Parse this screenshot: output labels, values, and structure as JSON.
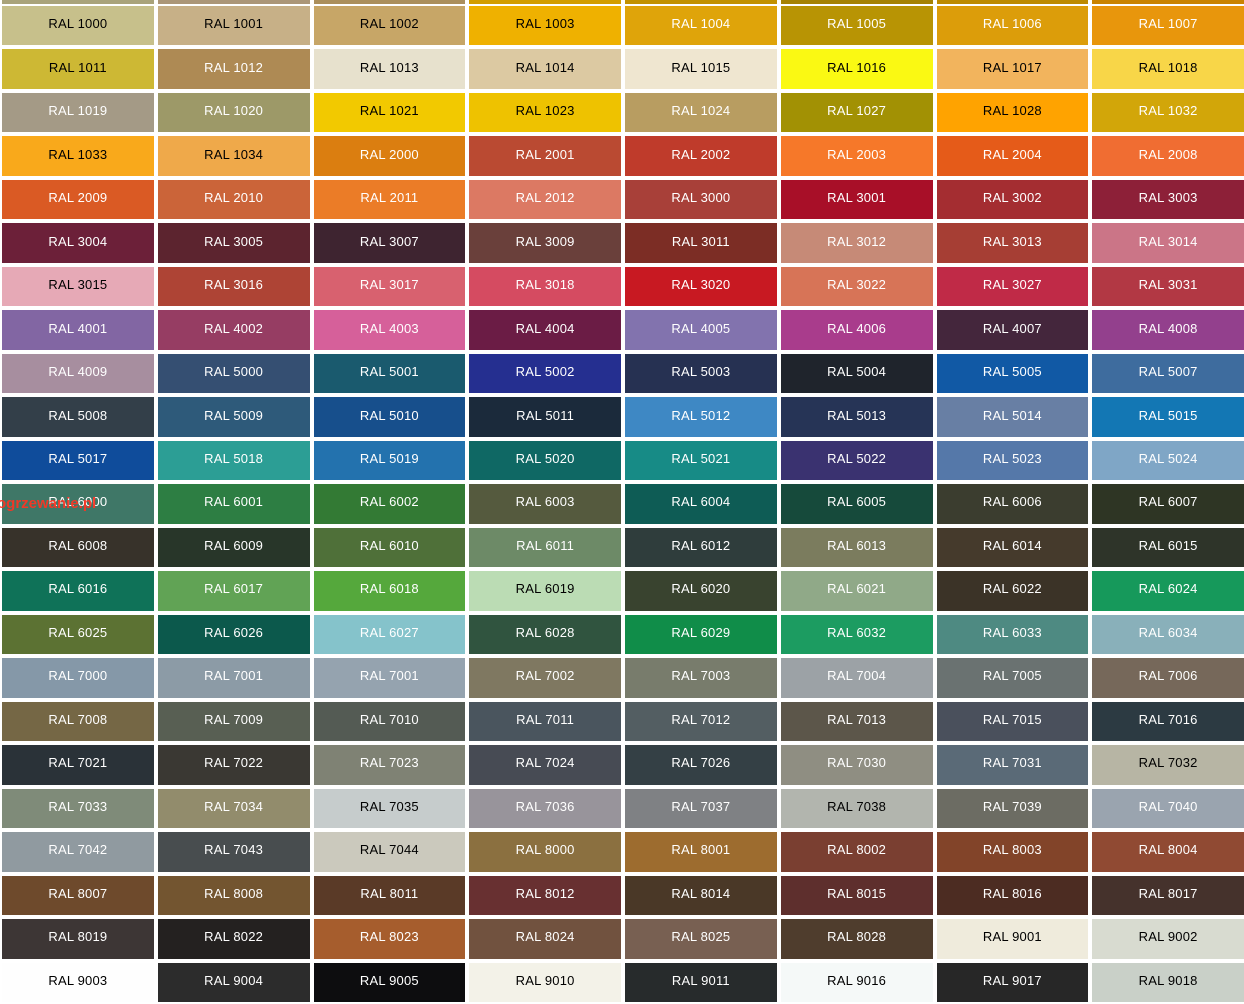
{
  "watermark": {
    "text": "ogrzewanie.pl",
    "color": "#ff3322"
  },
  "top_strip": {
    "note": "cropped bottom sliver of a previous chart row",
    "colors": [
      "#a9a37b",
      "#ab9678",
      "#ab8f5c",
      "#d39d00",
      "#c29100",
      "#a58203",
      "#bd8a00",
      "#ca8300"
    ]
  },
  "grid": {
    "columns": 8,
    "rows": 23,
    "cells": [
      {
        "code": "RAL 1000",
        "bg": "#c7c08b",
        "fg": "#000000"
      },
      {
        "code": "RAL 1001",
        "bg": "#c7b087",
        "fg": "#000000"
      },
      {
        "code": "RAL 1002",
        "bg": "#c7a667",
        "fg": "#000000"
      },
      {
        "code": "RAL 1003",
        "bg": "#efb100",
        "fg": "#000000"
      },
      {
        "code": "RAL 1004",
        "bg": "#dfa40a",
        "fg": "#ffffff"
      },
      {
        "code": "RAL 1005",
        "bg": "#b89404",
        "fg": "#ffffff"
      },
      {
        "code": "RAL 1006",
        "bg": "#dc9d0a",
        "fg": "#ffffff"
      },
      {
        "code": "RAL 1007",
        "bg": "#e8960c",
        "fg": "#ffffff"
      },
      {
        "code": "RAL 1011",
        "bg": "#cdb834",
        "fg": "#000000"
      },
      {
        "code": "RAL 1012",
        "bg": "#ae8a54",
        "fg": "#ffffff"
      },
      {
        "code": "RAL 1013",
        "bg": "#e7e1cd",
        "fg": "#000000"
      },
      {
        "code": "RAL 1014",
        "bg": "#dcc9a2",
        "fg": "#000000"
      },
      {
        "code": "RAL 1015",
        "bg": "#efe6d0",
        "fg": "#000000"
      },
      {
        "code": "RAL 1016",
        "bg": "#faf913",
        "fg": "#000000"
      },
      {
        "code": "RAL 1017",
        "bg": "#f2b45d",
        "fg": "#000000"
      },
      {
        "code": "RAL 1018",
        "bg": "#f8d648",
        "fg": "#000000"
      },
      {
        "code": "RAL 1019",
        "bg": "#a49a86",
        "fg": "#ffffff"
      },
      {
        "code": "RAL 1020",
        "bg": "#9d9968",
        "fg": "#ffffff"
      },
      {
        "code": "RAL 1021",
        "bg": "#f2c900",
        "fg": "#000000"
      },
      {
        "code": "RAL 1023",
        "bg": "#eec200",
        "fg": "#000000"
      },
      {
        "code": "RAL 1024",
        "bg": "#b89d61",
        "fg": "#ffffff"
      },
      {
        "code": "RAL 1027",
        "bg": "#a29104",
        "fg": "#ffffff"
      },
      {
        "code": "RAL 1028",
        "bg": "#ffa300",
        "fg": "#000000"
      },
      {
        "code": "RAL 1032",
        "bg": "#d2a609",
        "fg": "#ffffff"
      },
      {
        "code": "RAL 1033",
        "bg": "#f9a91b",
        "fg": "#000000"
      },
      {
        "code": "RAL 1034",
        "bg": "#efa94a",
        "fg": "#000000"
      },
      {
        "code": "RAL 2000",
        "bg": "#db7e10",
        "fg": "#ffffff"
      },
      {
        "code": "RAL 2001",
        "bg": "#ba4a32",
        "fg": "#ffffff"
      },
      {
        "code": "RAL 2002",
        "bg": "#bf3b2b",
        "fg": "#ffffff"
      },
      {
        "code": "RAL 2003",
        "bg": "#f67829",
        "fg": "#ffffff"
      },
      {
        "code": "RAL 2004",
        "bg": "#e55b19",
        "fg": "#ffffff"
      },
      {
        "code": "RAL 2008",
        "bg": "#f06d32",
        "fg": "#ffffff"
      },
      {
        "code": "RAL 2009",
        "bg": "#da5a24",
        "fg": "#ffffff"
      },
      {
        "code": "RAL 2010",
        "bg": "#cb6439",
        "fg": "#ffffff"
      },
      {
        "code": "RAL 2011",
        "bg": "#eb7c27",
        "fg": "#ffffff"
      },
      {
        "code": "RAL 2012",
        "bg": "#dc7963",
        "fg": "#ffffff"
      },
      {
        "code": "RAL 3000",
        "bg": "#a84039",
        "fg": "#ffffff"
      },
      {
        "code": "RAL 3001",
        "bg": "#a80f28",
        "fg": "#ffffff"
      },
      {
        "code": "RAL 3002",
        "bg": "#a42d31",
        "fg": "#ffffff"
      },
      {
        "code": "RAL 3003",
        "bg": "#8d2038",
        "fg": "#ffffff"
      },
      {
        "code": "RAL 3004",
        "bg": "#6c2039",
        "fg": "#ffffff"
      },
      {
        "code": "RAL 3005",
        "bg": "#5c242f",
        "fg": "#ffffff"
      },
      {
        "code": "RAL 3007",
        "bg": "#3e2430",
        "fg": "#ffffff"
      },
      {
        "code": "RAL 3009",
        "bg": "#6a403b",
        "fg": "#ffffff"
      },
      {
        "code": "RAL 3011",
        "bg": "#7c2d25",
        "fg": "#ffffff"
      },
      {
        "code": "RAL 3012",
        "bg": "#c68a77",
        "fg": "#ffffff"
      },
      {
        "code": "RAL 3013",
        "bg": "#a63e34",
        "fg": "#ffffff"
      },
      {
        "code": "RAL 3014",
        "bg": "#cb7587",
        "fg": "#ffffff"
      },
      {
        "code": "RAL 3015",
        "bg": "#e6a9b6",
        "fg": "#000000"
      },
      {
        "code": "RAL 3016",
        "bg": "#ae4435",
        "fg": "#ffffff"
      },
      {
        "code": "RAL 3017",
        "bg": "#d8616f",
        "fg": "#ffffff"
      },
      {
        "code": "RAL 3018",
        "bg": "#d54b61",
        "fg": "#ffffff"
      },
      {
        "code": "RAL 3020",
        "bg": "#c81922",
        "fg": "#ffffff"
      },
      {
        "code": "RAL 3022",
        "bg": "#d77457",
        "fg": "#ffffff"
      },
      {
        "code": "RAL 3027",
        "bg": "#c02a47",
        "fg": "#ffffff"
      },
      {
        "code": "RAL 3031",
        "bg": "#b23844",
        "fg": "#ffffff"
      },
      {
        "code": "RAL 4001",
        "bg": "#8266a3",
        "fg": "#ffffff"
      },
      {
        "code": "RAL 4002",
        "bg": "#963d63",
        "fg": "#ffffff"
      },
      {
        "code": "RAL 4003",
        "bg": "#d6609a",
        "fg": "#ffffff"
      },
      {
        "code": "RAL 4004",
        "bg": "#6b1c45",
        "fg": "#ffffff"
      },
      {
        "code": "RAL 4005",
        "bg": "#8273ae",
        "fg": "#ffffff"
      },
      {
        "code": "RAL 4006",
        "bg": "#a93c8c",
        "fg": "#ffffff"
      },
      {
        "code": "RAL 4007",
        "bg": "#44263c",
        "fg": "#ffffff"
      },
      {
        "code": "RAL 4008",
        "bg": "#93408d",
        "fg": "#ffffff"
      },
      {
        "code": "RAL 4009",
        "bg": "#a78e9f",
        "fg": "#ffffff"
      },
      {
        "code": "RAL 5000",
        "bg": "#354f72",
        "fg": "#ffffff"
      },
      {
        "code": "RAL 5001",
        "bg": "#1a5a6e",
        "fg": "#ffffff"
      },
      {
        "code": "RAL 5002",
        "bg": "#252f90",
        "fg": "#ffffff"
      },
      {
        "code": "RAL 5003",
        "bg": "#263152",
        "fg": "#ffffff"
      },
      {
        "code": "RAL 5004",
        "bg": "#1f242c",
        "fg": "#ffffff"
      },
      {
        "code": "RAL 5005",
        "bg": "#1159a5",
        "fg": "#ffffff"
      },
      {
        "code": "RAL 5007",
        "bg": "#3e6c9e",
        "fg": "#ffffff"
      },
      {
        "code": "RAL 5008",
        "bg": "#333f49",
        "fg": "#ffffff"
      },
      {
        "code": "RAL 5009",
        "bg": "#2e5a7a",
        "fg": "#ffffff"
      },
      {
        "code": "RAL 5010",
        "bg": "#174f8c",
        "fg": "#ffffff"
      },
      {
        "code": "RAL 5011",
        "bg": "#1b2a3b",
        "fg": "#ffffff"
      },
      {
        "code": "RAL 5012",
        "bg": "#3e88c4",
        "fg": "#ffffff"
      },
      {
        "code": "RAL 5013",
        "bg": "#263456",
        "fg": "#ffffff"
      },
      {
        "code": "RAL 5014",
        "bg": "#687fa4",
        "fg": "#ffffff"
      },
      {
        "code": "RAL 5015",
        "bg": "#1377b4",
        "fg": "#ffffff"
      },
      {
        "code": "RAL 5017",
        "bg": "#0f4c9b",
        "fg": "#ffffff"
      },
      {
        "code": "RAL 5018",
        "bg": "#2c9e95",
        "fg": "#ffffff"
      },
      {
        "code": "RAL 5019",
        "bg": "#2372ae",
        "fg": "#ffffff"
      },
      {
        "code": "RAL 5020",
        "bg": "#0f6864",
        "fg": "#ffffff"
      },
      {
        "code": "RAL 5021",
        "bg": "#178b86",
        "fg": "#ffffff"
      },
      {
        "code": "RAL 5022",
        "bg": "#3a3270",
        "fg": "#ffffff"
      },
      {
        "code": "RAL 5023",
        "bg": "#5578a9",
        "fg": "#ffffff"
      },
      {
        "code": "RAL 5024",
        "bg": "#7fa6c6",
        "fg": "#ffffff"
      },
      {
        "code": "RAL 6000",
        "bg": "#3f7767",
        "fg": "#ffffff"
      },
      {
        "code": "RAL 6001",
        "bg": "#2d7e43",
        "fg": "#ffffff"
      },
      {
        "code": "RAL 6002",
        "bg": "#337a34",
        "fg": "#ffffff"
      },
      {
        "code": "RAL 6003",
        "bg": "#555a3e",
        "fg": "#ffffff"
      },
      {
        "code": "RAL 6004",
        "bg": "#0e5c55",
        "fg": "#ffffff"
      },
      {
        "code": "RAL 6005",
        "bg": "#164a3b",
        "fg": "#ffffff"
      },
      {
        "code": "RAL 6006",
        "bg": "#3b3d2f",
        "fg": "#ffffff"
      },
      {
        "code": "RAL 6007",
        "bg": "#2e3524",
        "fg": "#ffffff"
      },
      {
        "code": "RAL 6008",
        "bg": "#37322a",
        "fg": "#ffffff"
      },
      {
        "code": "RAL 6009",
        "bg": "#283629",
        "fg": "#ffffff"
      },
      {
        "code": "RAL 6010",
        "bg": "#4f7039",
        "fg": "#ffffff"
      },
      {
        "code": "RAL 6011",
        "bg": "#6d8a67",
        "fg": "#ffffff"
      },
      {
        "code": "RAL 6012",
        "bg": "#2f3d3c",
        "fg": "#ffffff"
      },
      {
        "code": "RAL 6013",
        "bg": "#7b7c5e",
        "fg": "#ffffff"
      },
      {
        "code": "RAL 6014",
        "bg": "#453a2c",
        "fg": "#ffffff"
      },
      {
        "code": "RAL 6015",
        "bg": "#2e3429",
        "fg": "#ffffff"
      },
      {
        "code": "RAL 6016",
        "bg": "#0f7258",
        "fg": "#ffffff"
      },
      {
        "code": "RAL 6017",
        "bg": "#61a355",
        "fg": "#ffffff"
      },
      {
        "code": "RAL 6018",
        "bg": "#55a83c",
        "fg": "#ffffff"
      },
      {
        "code": "RAL 6019",
        "bg": "#bbdcb4",
        "fg": "#000000"
      },
      {
        "code": "RAL 6020",
        "bg": "#39432f",
        "fg": "#ffffff"
      },
      {
        "code": "RAL 6021",
        "bg": "#90a988",
        "fg": "#ffffff"
      },
      {
        "code": "RAL 6022",
        "bg": "#3b3327",
        "fg": "#ffffff"
      },
      {
        "code": "RAL 6024",
        "bg": "#16995b",
        "fg": "#ffffff"
      },
      {
        "code": "RAL 6025",
        "bg": "#5c7233",
        "fg": "#ffffff"
      },
      {
        "code": "RAL 6026",
        "bg": "#0c594c",
        "fg": "#ffffff"
      },
      {
        "code": "RAL 6027",
        "bg": "#85c3cb",
        "fg": "#ffffff"
      },
      {
        "code": "RAL 6028",
        "bg": "#30543f",
        "fg": "#ffffff"
      },
      {
        "code": "RAL 6029",
        "bg": "#108d49",
        "fg": "#ffffff"
      },
      {
        "code": "RAL 6032",
        "bg": "#1c9c61",
        "fg": "#ffffff"
      },
      {
        "code": "RAL 6033",
        "bg": "#4e8a82",
        "fg": "#ffffff"
      },
      {
        "code": "RAL 6034",
        "bg": "#89b0ba",
        "fg": "#ffffff"
      },
      {
        "code": "RAL 7000",
        "bg": "#8598a8",
        "fg": "#ffffff"
      },
      {
        "code": "RAL 7001",
        "bg": "#8c9ba6",
        "fg": "#ffffff"
      },
      {
        "code": "RAL 7001",
        "bg": "#95a3af",
        "fg": "#ffffff"
      },
      {
        "code": "RAL 7002",
        "bg": "#7f7861",
        "fg": "#ffffff"
      },
      {
        "code": "RAL 7003",
        "bg": "#787c6c",
        "fg": "#ffffff"
      },
      {
        "code": "RAL 7004",
        "bg": "#9ca2a6",
        "fg": "#ffffff"
      },
      {
        "code": "RAL 7005",
        "bg": "#6a7271",
        "fg": "#ffffff"
      },
      {
        "code": "RAL 7006",
        "bg": "#76685a",
        "fg": "#ffffff"
      },
      {
        "code": "RAL 7008",
        "bg": "#756745",
        "fg": "#ffffff"
      },
      {
        "code": "RAL 7009",
        "bg": "#585f53",
        "fg": "#ffffff"
      },
      {
        "code": "RAL 7010",
        "bg": "#545b54",
        "fg": "#ffffff"
      },
      {
        "code": "RAL 7011",
        "bg": "#4a555e",
        "fg": "#ffffff"
      },
      {
        "code": "RAL 7012",
        "bg": "#535e62",
        "fg": "#ffffff"
      },
      {
        "code": "RAL 7013",
        "bg": "#5c564a",
        "fg": "#ffffff"
      },
      {
        "code": "RAL 7015",
        "bg": "#4a505c",
        "fg": "#ffffff"
      },
      {
        "code": "RAL 7016",
        "bg": "#2c3a42",
        "fg": "#ffffff"
      },
      {
        "code": "RAL 7021",
        "bg": "#2a3238",
        "fg": "#ffffff"
      },
      {
        "code": "RAL 7022",
        "bg": "#3a3833",
        "fg": "#ffffff"
      },
      {
        "code": "RAL 7023",
        "bg": "#7f8274",
        "fg": "#ffffff"
      },
      {
        "code": "RAL 7024",
        "bg": "#474b54",
        "fg": "#ffffff"
      },
      {
        "code": "RAL 7026",
        "bg": "#344045",
        "fg": "#ffffff"
      },
      {
        "code": "RAL 7030",
        "bg": "#8f8e82",
        "fg": "#ffffff"
      },
      {
        "code": "RAL 7031",
        "bg": "#5a6a77",
        "fg": "#ffffff"
      },
      {
        "code": "RAL 7032",
        "bg": "#b7b5a4",
        "fg": "#000000"
      },
      {
        "code": "RAL 7033",
        "bg": "#7f8b79",
        "fg": "#ffffff"
      },
      {
        "code": "RAL 7034",
        "bg": "#928c6c",
        "fg": "#ffffff"
      },
      {
        "code": "RAL 7035",
        "bg": "#c6cccc",
        "fg": "#000000"
      },
      {
        "code": "RAL 7036",
        "bg": "#98949b",
        "fg": "#ffffff"
      },
      {
        "code": "RAL 7037",
        "bg": "#7f8184",
        "fg": "#ffffff"
      },
      {
        "code": "RAL 7038",
        "bg": "#b2b5ae",
        "fg": "#000000"
      },
      {
        "code": "RAL 7039",
        "bg": "#6c6c63",
        "fg": "#ffffff"
      },
      {
        "code": "RAL 7040",
        "bg": "#9aa4af",
        "fg": "#ffffff"
      },
      {
        "code": "RAL 7042",
        "bg": "#909aa0",
        "fg": "#ffffff"
      },
      {
        "code": "RAL 7043",
        "bg": "#484d4f",
        "fg": "#ffffff"
      },
      {
        "code": "RAL 7044",
        "bg": "#cbc9bd",
        "fg": "#000000"
      },
      {
        "code": "RAL 8000",
        "bg": "#8b7040",
        "fg": "#ffffff"
      },
      {
        "code": "RAL 8001",
        "bg": "#9d6c2f",
        "fg": "#ffffff"
      },
      {
        "code": "RAL 8002",
        "bg": "#7a3f31",
        "fg": "#ffffff"
      },
      {
        "code": "RAL 8003",
        "bg": "#824429",
        "fg": "#ffffff"
      },
      {
        "code": "RAL 8004",
        "bg": "#904a33",
        "fg": "#ffffff"
      },
      {
        "code": "RAL 8007",
        "bg": "#6e4a2c",
        "fg": "#ffffff"
      },
      {
        "code": "RAL 8008",
        "bg": "#735530",
        "fg": "#ffffff"
      },
      {
        "code": "RAL 8011",
        "bg": "#5a3a27",
        "fg": "#ffffff"
      },
      {
        "code": "RAL 8012",
        "bg": "#683031",
        "fg": "#ffffff"
      },
      {
        "code": "RAL 8014",
        "bg": "#4a3827",
        "fg": "#ffffff"
      },
      {
        "code": "RAL 8015",
        "bg": "#5e2f2d",
        "fg": "#ffffff"
      },
      {
        "code": "RAL 8016",
        "bg": "#4c2c22",
        "fg": "#ffffff"
      },
      {
        "code": "RAL 8017",
        "bg": "#45322c",
        "fg": "#ffffff"
      },
      {
        "code": "RAL 8019",
        "bg": "#3d3635",
        "fg": "#ffffff"
      },
      {
        "code": "RAL 8022",
        "bg": "#242120",
        "fg": "#ffffff"
      },
      {
        "code": "RAL 8023",
        "bg": "#a65d2d",
        "fg": "#ffffff"
      },
      {
        "code": "RAL 8024",
        "bg": "#71523f",
        "fg": "#ffffff"
      },
      {
        "code": "RAL 8025",
        "bg": "#786052",
        "fg": "#ffffff"
      },
      {
        "code": "RAL 8028",
        "bg": "#4f3d2d",
        "fg": "#ffffff"
      },
      {
        "code": "RAL 9001",
        "bg": "#efebdc",
        "fg": "#000000"
      },
      {
        "code": "RAL 9002",
        "bg": "#d8dbd0",
        "fg": "#000000"
      },
      {
        "code": "RAL 9003",
        "bg": "#fefefe",
        "fg": "#000000"
      },
      {
        "code": "RAL 9004",
        "bg": "#2c2c2c",
        "fg": "#ffffff"
      },
      {
        "code": "RAL 9005",
        "bg": "#0d0d0f",
        "fg": "#ffffff"
      },
      {
        "code": "RAL 9010",
        "bg": "#f3f2e8",
        "fg": "#000000"
      },
      {
        "code": "RAL 9011",
        "bg": "#272b2c",
        "fg": "#ffffff"
      },
      {
        "code": "RAL 9016",
        "bg": "#f5f9f8",
        "fg": "#000000"
      },
      {
        "code": "RAL 9017",
        "bg": "#272727",
        "fg": "#ffffff"
      },
      {
        "code": "RAL 9018",
        "bg": "#c9d0c8",
        "fg": "#000000"
      }
    ]
  }
}
